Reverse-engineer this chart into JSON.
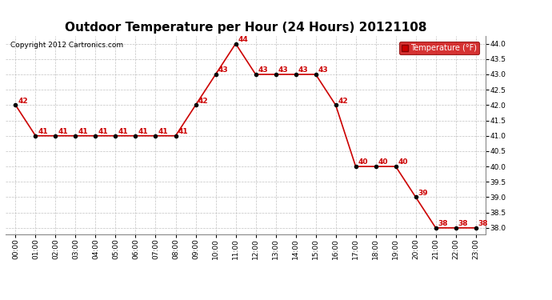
{
  "title": "Outdoor Temperature per Hour (24 Hours) 20121108",
  "copyright": "Copyright 2012 Cartronics.com",
  "legend_label": "Temperature (°F)",
  "hours": [
    0,
    1,
    2,
    3,
    4,
    5,
    6,
    7,
    8,
    9,
    10,
    11,
    12,
    13,
    14,
    15,
    16,
    17,
    18,
    19,
    20,
    21,
    22,
    23
  ],
  "temps": [
    42,
    41,
    41,
    41,
    41,
    41,
    41,
    41,
    41,
    42,
    43,
    44,
    43,
    43,
    43,
    43,
    42,
    40,
    40,
    40,
    39,
    38,
    38,
    38
  ],
  "x_labels": [
    "00:00",
    "01:00",
    "02:00",
    "03:00",
    "04:00",
    "05:00",
    "06:00",
    "07:00",
    "08:00",
    "09:00",
    "10:00",
    "11:00",
    "12:00",
    "13:00",
    "14:00",
    "15:00",
    "16:00",
    "17:00",
    "18:00",
    "19:00",
    "20:00",
    "21:00",
    "22:00",
    "23:00"
  ],
  "ylim_min": 37.8,
  "ylim_max": 44.25,
  "yticks": [
    38.0,
    38.5,
    39.0,
    39.5,
    40.0,
    40.5,
    41.0,
    41.5,
    42.0,
    42.5,
    43.0,
    43.5,
    44.0
  ],
  "line_color": "#cc0000",
  "marker_color": "#000000",
  "background_color": "#ffffff",
  "grid_color": "#bbbbbb",
  "title_fontsize": 11,
  "annotation_color": "#cc0000",
  "legend_bg": "#cc0000",
  "legend_fg": "#ffffff"
}
